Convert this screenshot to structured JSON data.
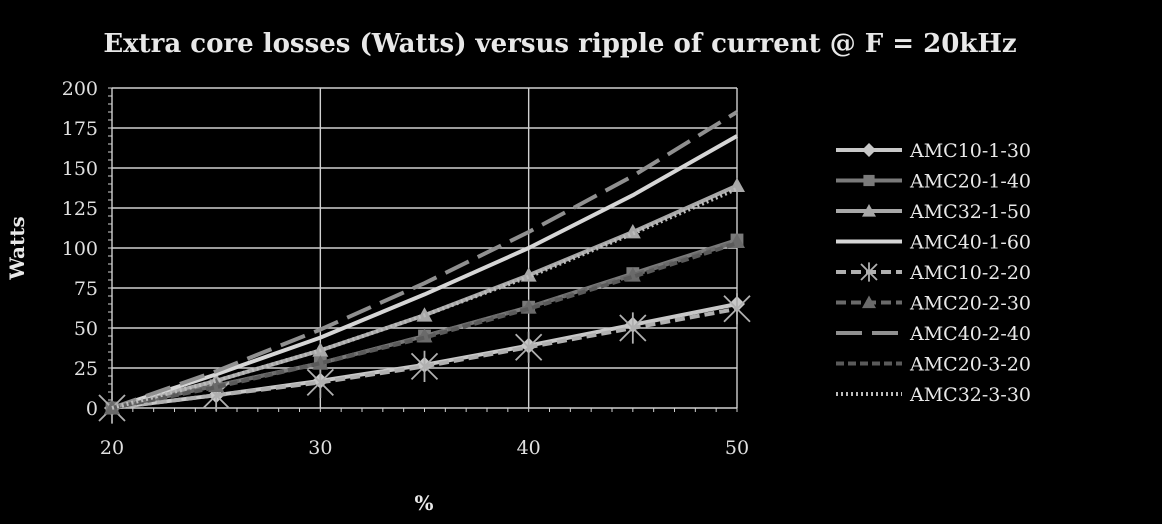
{
  "chart_data": {
    "type": "line",
    "title": "Extra core losses (Watts) versus ripple of current @ F = 20kHz",
    "xlabel": "%",
    "ylabel": "Watts",
    "xlim": [
      20,
      50
    ],
    "ylim": [
      0,
      200
    ],
    "x_ticks": [
      20,
      30,
      40,
      50
    ],
    "y_ticks": [
      0,
      25,
      50,
      75,
      100,
      125,
      150,
      175,
      200
    ],
    "x": [
      20,
      25,
      30,
      35,
      40,
      45,
      50
    ],
    "grid": true,
    "legend_position": "right",
    "series": [
      {
        "name": "AMC10-1-30",
        "values": [
          0,
          8,
          17,
          27,
          39,
          52,
          65
        ],
        "color": "#c8c8c8",
        "dash": "",
        "marker": "diamond"
      },
      {
        "name": "AMC20-1-40",
        "values": [
          0,
          14,
          28,
          45,
          63,
          84,
          105
        ],
        "color": "#7a7a7a",
        "dash": "",
        "marker": "square"
      },
      {
        "name": "AMC32-1-50",
        "values": [
          0,
          17,
          36,
          58,
          83,
          110,
          139
        ],
        "color": "#a8a8a8",
        "dash": "",
        "marker": "triangle"
      },
      {
        "name": "AMC40-1-60",
        "values": [
          0,
          21,
          44,
          71,
          100,
          133,
          170
        ],
        "color": "#d6d6d6",
        "dash": "",
        "marker": "none"
      },
      {
        "name": "AMC10-2-20",
        "values": [
          0,
          8,
          16,
          26,
          38,
          50,
          62
        ],
        "color": "#b0b0b0",
        "dash": "10,5",
        "marker": "asterisk"
      },
      {
        "name": "AMC20-2-30",
        "values": [
          0,
          14,
          28,
          45,
          63,
          83,
          104
        ],
        "color": "#6a6a6a",
        "dash": "10,5",
        "marker": "triangle"
      },
      {
        "name": "AMC40-2-40",
        "values": [
          0,
          23,
          49,
          78,
          110,
          145,
          185
        ],
        "color": "#909090",
        "dash": "26,10",
        "marker": "none"
      },
      {
        "name": "AMC20-3-20",
        "values": [
          0,
          13,
          28,
          44,
          62,
          82,
          103
        ],
        "color": "#5a5a5a",
        "dash": "8,4",
        "marker": "none"
      },
      {
        "name": "AMC32-3-30",
        "values": [
          0,
          17,
          36,
          58,
          82,
          109,
          137
        ],
        "color": "#bcbcbc",
        "dash": "2,3",
        "marker": "none"
      }
    ]
  }
}
